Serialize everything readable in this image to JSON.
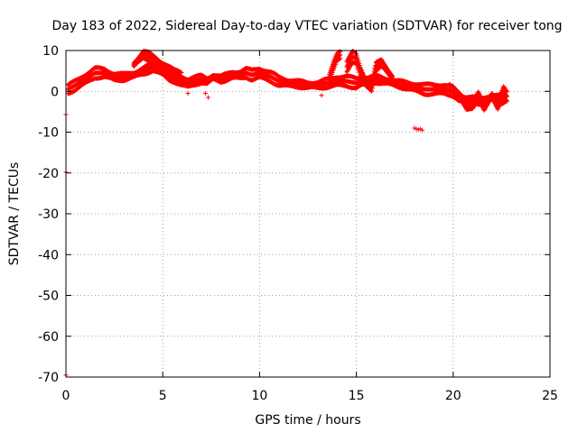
{
  "chart_data": {
    "type": "scatter",
    "title": "Day 183 of 2022, Sidereal Day-to-day VTEC variation (SDTVAR) for receiver tong",
    "xlabel": "GPS time / hours",
    "ylabel": "SDTVAR / TECUs",
    "xlim": [
      0,
      25
    ],
    "ylim": [
      -70,
      10
    ],
    "xticks": [
      0,
      5,
      10,
      15,
      20,
      25
    ],
    "yticks": [
      10,
      0,
      -10,
      -20,
      -30,
      -40,
      -50,
      -60,
      -70
    ],
    "grid": true,
    "marker": "+",
    "series": [
      {
        "name": "SDTVAR",
        "color": "#ff0000",
        "bands": [
          {
            "x": [
              0.1,
              0.5,
              1.0,
              1.5,
              2.0,
              2.5,
              3.0,
              3.5,
              4.0,
              4.5,
              5.0,
              5.3,
              5.6,
              6.0,
              6.3,
              6.6,
              7.0,
              7.3,
              7.6,
              8.0,
              8.3,
              8.6,
              9.0,
              9.3,
              9.6,
              10.0,
              10.3,
              10.6,
              11.0,
              11.5,
              12.0,
              12.5,
              13.0,
              13.5,
              14.0,
              14.5,
              15.0,
              15.3,
              15.6,
              16.0,
              16.5,
              17.0,
              17.5,
              18.0,
              18.5,
              19.0,
              19.5,
              20.0,
              20.3,
              20.6,
              21.0,
              21.5,
              22.0,
              22.5,
              22.8
            ],
            "y": [
              0.5,
              1.5,
              3.0,
              4.5,
              4.5,
              3.5,
              3.5,
              4.0,
              5.0,
              6.0,
              5.0,
              4.0,
              3.5,
              2.5,
              2.0,
              2.5,
              3.0,
              2.5,
              3.5,
              3.0,
              3.5,
              4.0,
              4.0,
              4.5,
              4.0,
              4.5,
              4.0,
              3.5,
              2.5,
              2.0,
              1.8,
              1.5,
              1.5,
              2.0,
              2.5,
              2.5,
              2.0,
              2.5,
              2.5,
              3.0,
              2.5,
              2.0,
              1.5,
              1.0,
              0.5,
              0.5,
              0.5,
              0.0,
              -1.5,
              -2.0,
              -2.0,
              -2.5,
              -1.5,
              -2.0,
              -1.0
            ]
          },
          {
            "x": [
              3.5,
              3.8,
              4.0,
              4.3,
              4.6,
              5.0,
              5.3,
              5.6,
              6.0
            ],
            "y": [
              6.5,
              8.0,
              9.0,
              8.5,
              7.5,
              6.0,
              5.0,
              4.0,
              3.5
            ]
          },
          {
            "x": [
              13.6,
              13.8,
              14.0,
              14.2
            ],
            "y": [
              3.0,
              6.0,
              8.5,
              9.0
            ]
          },
          {
            "x": [
              14.5,
              14.8,
              15.0,
              15.2,
              15.5,
              15.8,
              16.0,
              16.3,
              16.6,
              16.9
            ],
            "y": [
              6.0,
              8.5,
              8.0,
              5.0,
              2.0,
              1.0,
              6.0,
              7.0,
              5.0,
              3.0
            ]
          },
          {
            "x": [
              19.8,
              20.1,
              20.4,
              20.7,
              21.0,
              21.3,
              21.6,
              22.0,
              22.3,
              22.6,
              22.8
            ],
            "y": [
              0.5,
              -0.5,
              -1.5,
              -4.0,
              -3.5,
              -1.0,
              -4.0,
              -1.0,
              -3.5,
              0.0,
              -1.5
            ]
          }
        ],
        "scatter": [
          {
            "x": 0.0,
            "y": -5.7
          },
          {
            "x": 0.0,
            "y": -19.8
          },
          {
            "x": 0.0,
            "y": -69.5
          },
          {
            "x": 6.3,
            "y": -0.5
          },
          {
            "x": 7.2,
            "y": -0.5
          },
          {
            "x": 7.35,
            "y": -1.5
          },
          {
            "x": 13.2,
            "y": -1.0
          },
          {
            "x": 21.6,
            "y": -4.5
          },
          {
            "x": 18.0,
            "y": -9.0
          },
          {
            "x": 18.1,
            "y": -9.2
          },
          {
            "x": 18.2,
            "y": -9.4
          },
          {
            "x": 18.3,
            "y": -9.2
          },
          {
            "x": 18.4,
            "y": -9.5
          }
        ]
      }
    ]
  }
}
